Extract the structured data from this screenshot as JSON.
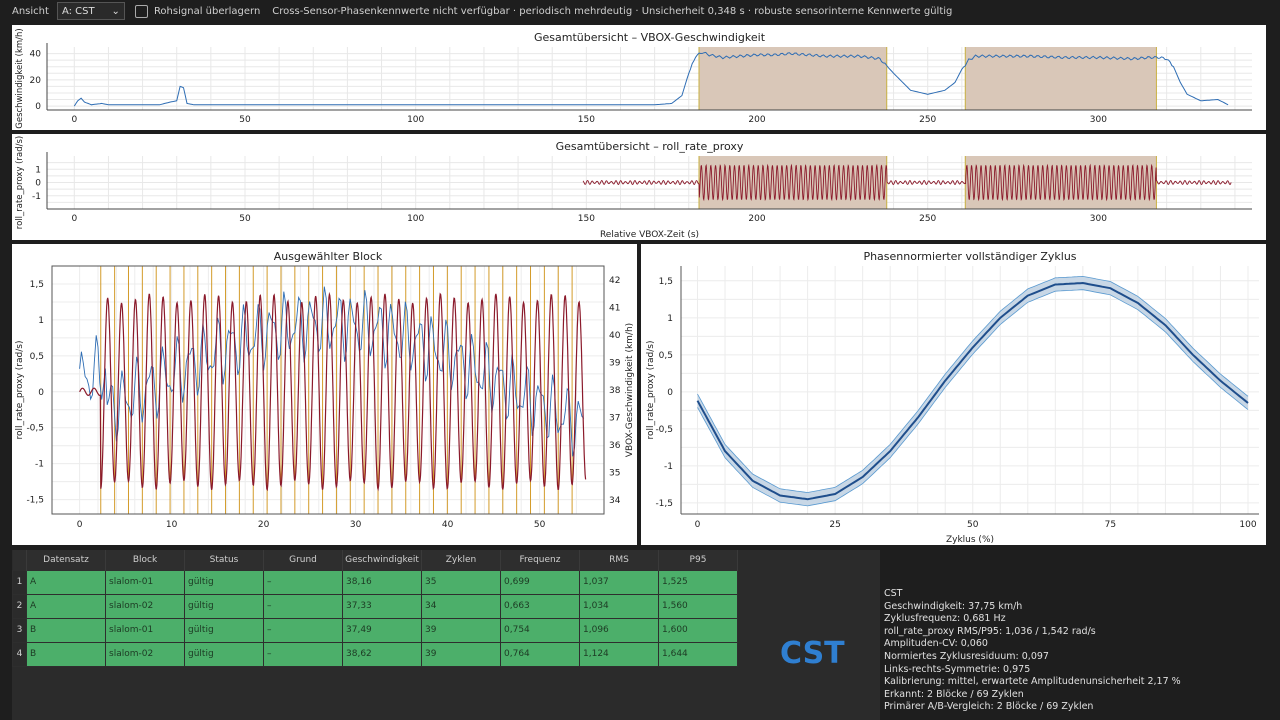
{
  "toolbar": {
    "view_label": "Ansicht",
    "view_value": "A: CST",
    "raw_overlay_label": "Rohsignal überlagern",
    "status_text": "Cross-Sensor-Phasenkennwerte nicht verfügbar · periodisch mehrdeutig · Unsicherheit 0,348 s · robuste sensorinterne Kennwerte gültig"
  },
  "overview_speed": {
    "title": "Gesamtübersicht – VBOX-Geschwindigkeit",
    "ylabel": "Geschwindigkeit (km/h)",
    "xticks": [
      "0",
      "50",
      "100",
      "150",
      "200",
      "250",
      "300"
    ],
    "yticks": [
      "40",
      "20",
      "0"
    ]
  },
  "overview_roll": {
    "title": "Gesamtübersicht – roll_rate_proxy",
    "ylabel": "roll_rate_proxy (rad/s)",
    "xlabel": "Relative VBOX-Zeit (s)",
    "xticks": [
      "0",
      "50",
      "100",
      "150",
      "200",
      "250",
      "300"
    ],
    "yticks": [
      "1",
      "0",
      "-1"
    ]
  },
  "block_plot": {
    "title": "Ausgewählter Block",
    "ylabel_left": "roll_rate_proxy (rad/s)",
    "ylabel_right": "VBOX-Geschwindigkeit (km/h)",
    "xticks": [
      "0",
      "10",
      "20",
      "30",
      "40",
      "50"
    ],
    "yticks_left": [
      "1,5",
      "1",
      "0,5",
      "0",
      "-0,5",
      "-1",
      "-1,5"
    ],
    "yticks_right": [
      "42",
      "41",
      "40",
      "39",
      "38",
      "37",
      "36",
      "35",
      "34"
    ]
  },
  "phase_plot": {
    "title": "Phasennormierter vollständiger Zyklus",
    "ylabel": "roll_rate_proxy (rad/s)",
    "xlabel": "Zyklus (%)",
    "xticks": [
      "0",
      "25",
      "50",
      "75",
      "100"
    ],
    "yticks": [
      "1,5",
      "1",
      "0,5",
      "0",
      "-0,5",
      "-1",
      "-1,5"
    ]
  },
  "chart_data": [
    {
      "type": "line",
      "title": "Gesamtübersicht – VBOX-Geschwindigkeit",
      "ylabel": "Geschwindigkeit (km/h)",
      "xlim": [
        -8,
        345
      ],
      "ylim": [
        -3,
        45
      ],
      "series": [
        {
          "x": [
            0,
            1,
            2,
            3,
            5,
            8,
            10,
            15,
            20,
            25,
            28,
            30,
            31,
            32,
            33,
            35,
            40,
            45,
            50,
            60,
            70,
            80,
            90,
            100,
            110,
            120,
            130,
            140,
            150,
            160,
            170,
            175,
            178,
            180,
            182,
            184,
            186,
            190,
            195,
            200,
            205,
            210,
            215,
            220,
            225,
            230,
            233,
            236,
            240,
            245,
            250,
            255,
            258,
            260,
            262,
            264,
            270,
            280,
            290,
            300,
            310,
            315,
            318,
            320,
            322,
            324,
            326,
            330,
            335,
            338
          ],
          "y": [
            0,
            4,
            6,
            3,
            1,
            2,
            1,
            1,
            1,
            1,
            3,
            4,
            15,
            14,
            2,
            1,
            1,
            1,
            1,
            1,
            1,
            1,
            1,
            1,
            1,
            1,
            1,
            1,
            1,
            1,
            1,
            2,
            8,
            25,
            38,
            41,
            39,
            37,
            38,
            39,
            39,
            40,
            39,
            38,
            38,
            38,
            37,
            36,
            25,
            12,
            9,
            12,
            18,
            28,
            35,
            38,
            38,
            38,
            37,
            37,
            36,
            37,
            37,
            36,
            30,
            18,
            9,
            4,
            5,
            1
          ]
        }
      ],
      "shaded_regions": [
        [
          183,
          238
        ],
        [
          261,
          317
        ]
      ]
    },
    {
      "type": "line",
      "title": "Gesamtübersicht – roll_rate_proxy",
      "ylabel": "roll_rate_proxy (rad/s)",
      "xlabel": "Relative VBOX-Zeit (s)",
      "xlim": [
        -8,
        345
      ],
      "ylim": [
        -2,
        2
      ],
      "amplitude_outside": 0.15,
      "amplitude_inside": 1.3,
      "signal_start": 149,
      "signal_end": 339,
      "shaded_regions": [
        [
          183,
          238
        ],
        [
          261,
          317
        ]
      ]
    },
    {
      "type": "line",
      "title": "Ausgewählter Block",
      "xlim": [
        -3,
        57
      ],
      "ylim_left": [
        -1.7,
        1.75
      ],
      "ylim_right": [
        33.5,
        42.5
      ],
      "roll_amplitude": 1.3,
      "roll_cycles": 35,
      "speed_mean": 38.2,
      "speed_range": [
        35,
        42
      ]
    },
    {
      "type": "line",
      "title": "Phasennormierter vollständiger Zyklus",
      "xlabel": "Zyklus (%)",
      "ylabel": "roll_rate_proxy (rad/s)",
      "xlim": [
        -3,
        102
      ],
      "ylim": [
        -1.65,
        1.7
      ],
      "series": [
        {
          "name": "mean",
          "x": [
            0,
            5,
            10,
            15,
            20,
            25,
            30,
            35,
            40,
            45,
            50,
            55,
            60,
            65,
            70,
            75,
            80,
            85,
            90,
            95,
            100
          ],
          "y": [
            -0.12,
            -0.8,
            -1.2,
            -1.4,
            -1.45,
            -1.38,
            -1.15,
            -0.8,
            -0.35,
            0.15,
            0.6,
            1.0,
            1.3,
            1.45,
            1.47,
            1.4,
            1.2,
            0.9,
            0.5,
            0.15,
            -0.15
          ]
        }
      ],
      "band_width": 0.09
    }
  ],
  "table": {
    "headers": [
      "Datensatz",
      "Block",
      "Status",
      "Grund",
      "Geschwindigkeit",
      "Zyklen",
      "Frequenz",
      "RMS",
      "P95"
    ],
    "rows": [
      {
        "n": "1",
        "c": [
          "A",
          "slalom-01",
          "gültig",
          "–",
          "38,16",
          "35",
          "0,699",
          "1,037",
          "1,525"
        ]
      },
      {
        "n": "2",
        "c": [
          "A",
          "slalom-02",
          "gültig",
          "–",
          "37,33",
          "34",
          "0,663",
          "1,034",
          "1,560"
        ]
      },
      {
        "n": "3",
        "c": [
          "B",
          "slalom-01",
          "gültig",
          "–",
          "37,49",
          "39",
          "0,754",
          "1,096",
          "1,600"
        ]
      },
      {
        "n": "4",
        "c": [
          "B",
          "slalom-02",
          "gültig",
          "–",
          "38,62",
          "39",
          "0,764",
          "1,124",
          "1,644"
        ]
      }
    ]
  },
  "logo_text": "CST",
  "info": {
    "lines": [
      "CST",
      "Geschwindigkeit: 37,75 km/h",
      "Zyklusfrequenz: 0,681 Hz",
      "roll_rate_proxy RMS/P95: 1,036 / 1,542 rad/s",
      "Amplituden-CV: 0,060",
      "Normiertes Zyklusresiduum: 0,097",
      "Links-rechts-Symmetrie: 0,975",
      "Kalibrierung: mittel, erwartete Amplitudenunsicherheit 2,17 %",
      "Erkannt: 2 Blöcke / 69 Zyklen",
      "Primärer A/B-Vergleich: 2 Blöcke / 69 Zyklen"
    ]
  },
  "colors": {
    "speed_line": "#2e6db4",
    "roll_line": "#8b1a2b",
    "shade": "#d9c7b8",
    "shade_edge": "#c9b040",
    "table_row": "#4caf6a",
    "logo": "#2f7fd1"
  }
}
